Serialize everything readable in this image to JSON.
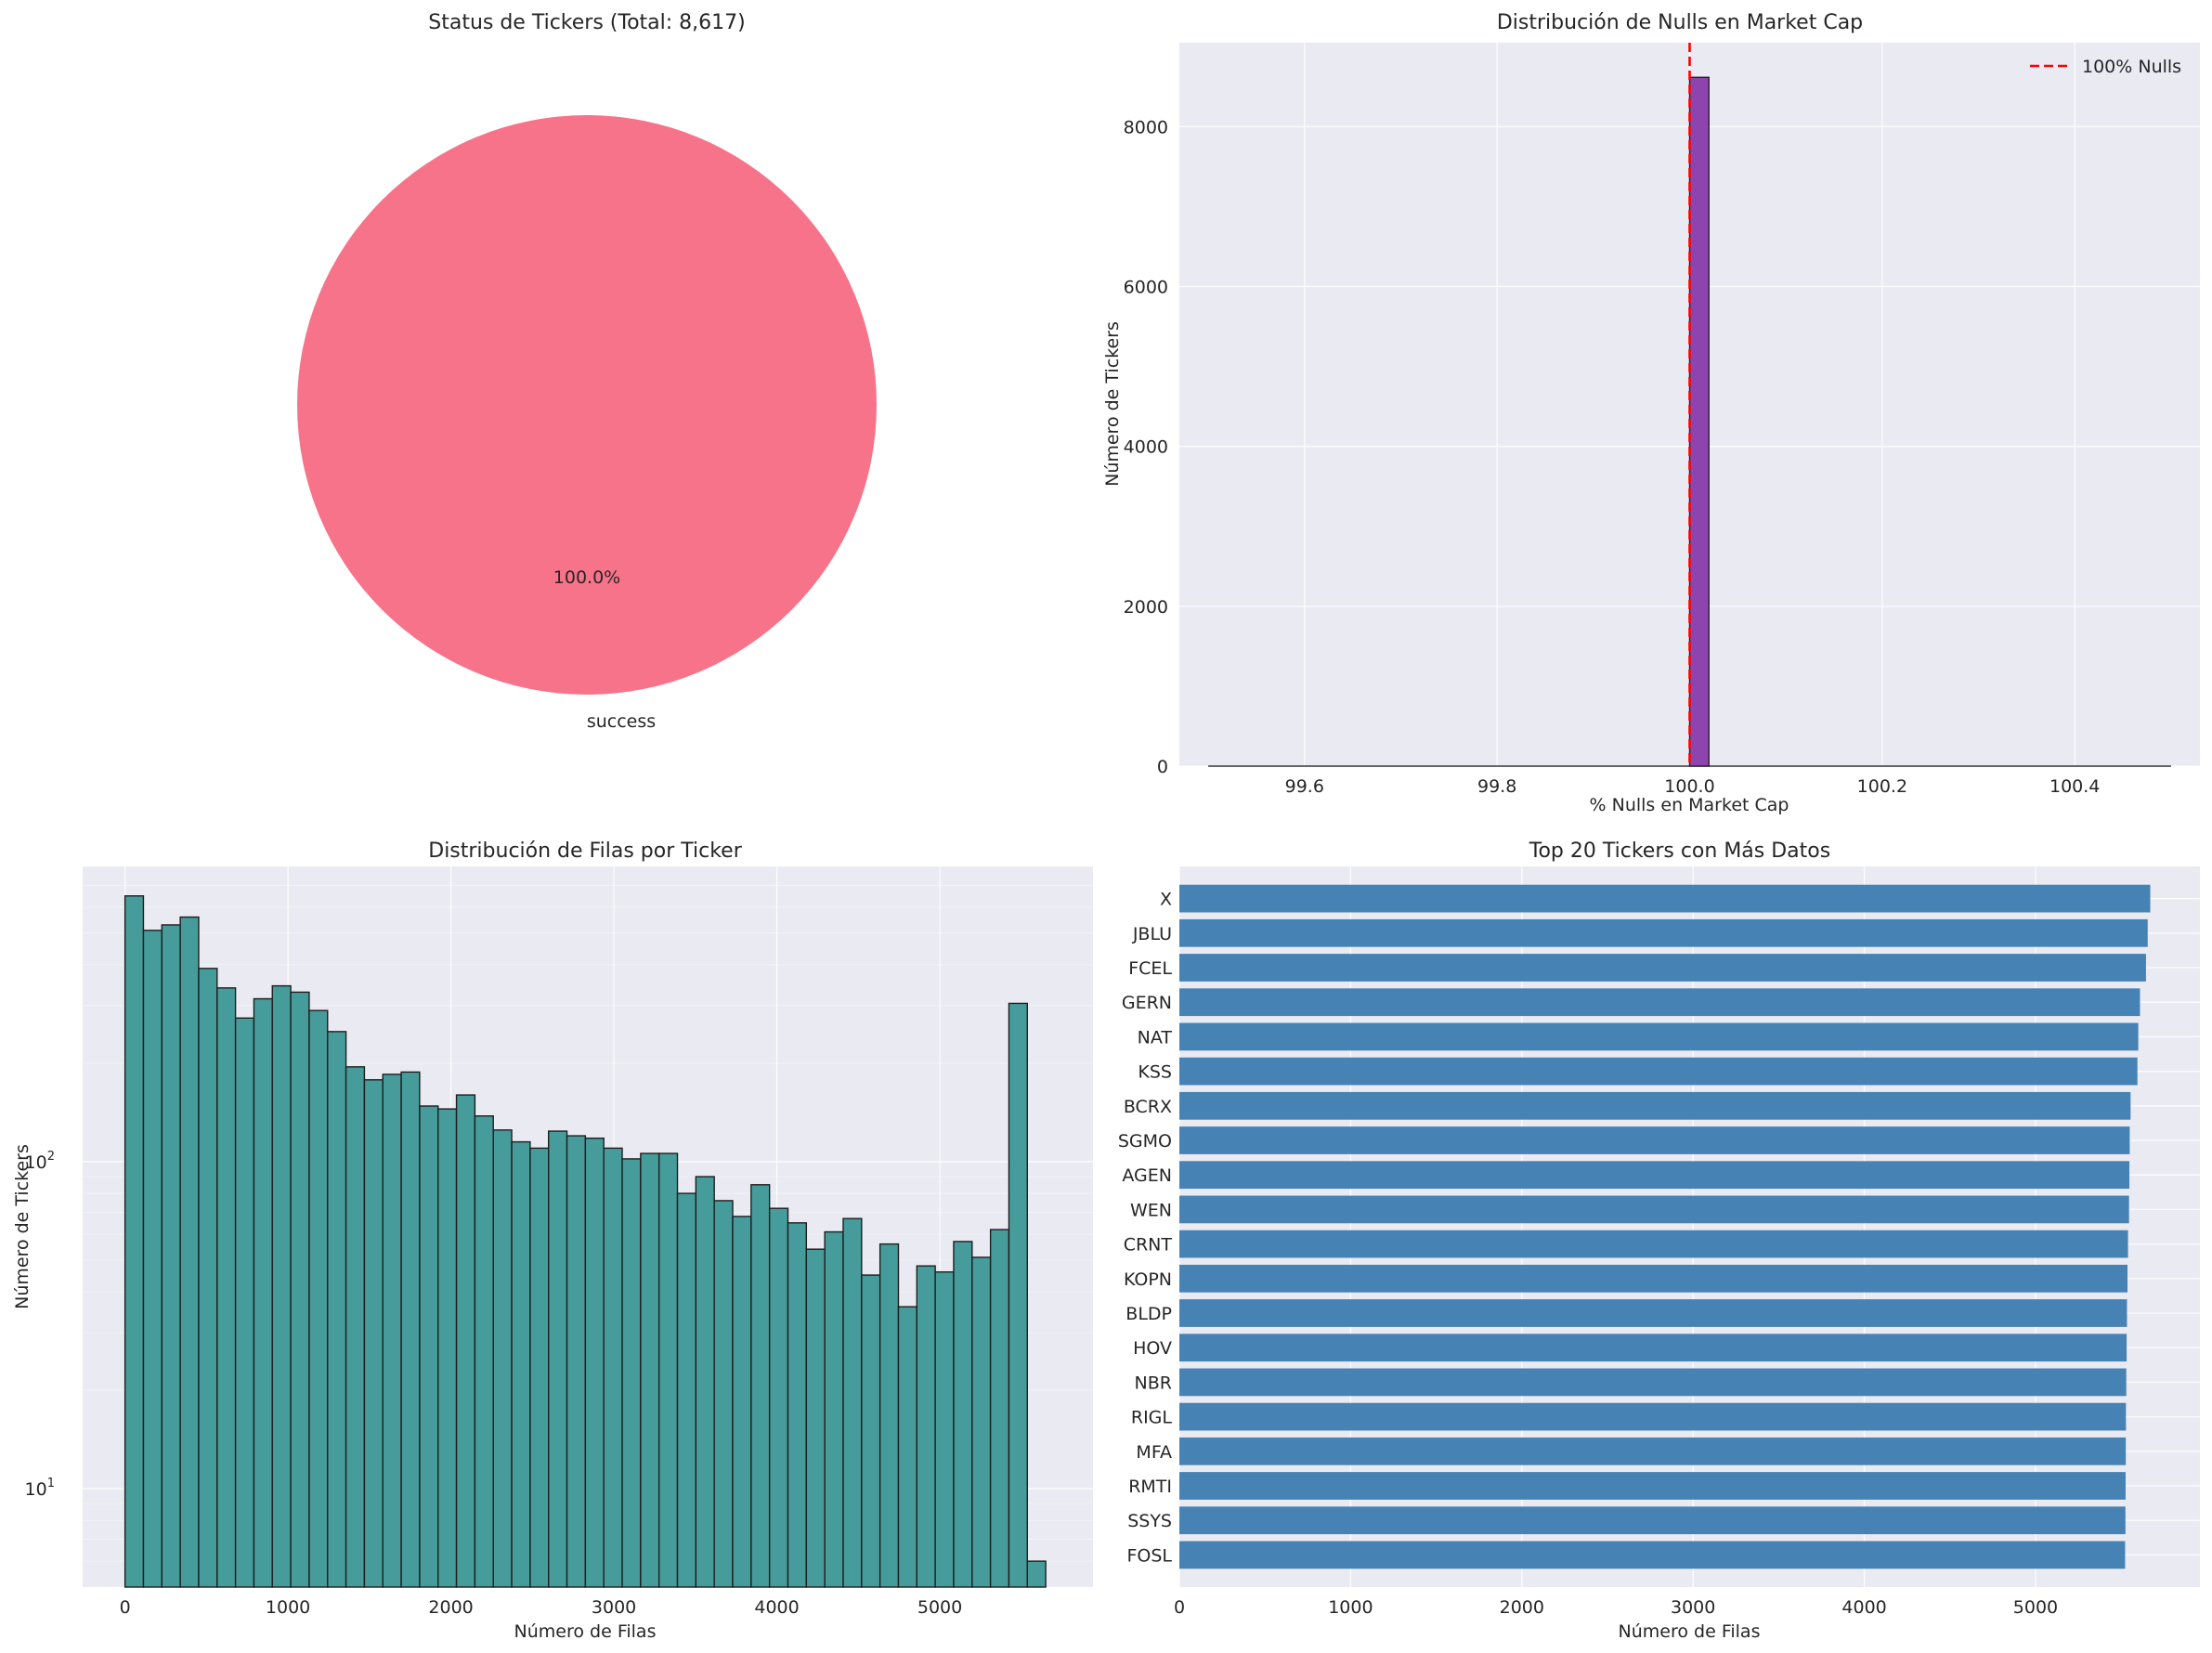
{
  "colors": {
    "panel_bg": "#eaeaf2",
    "pie": "#f7738a",
    "hist_purple": "#8e44ad",
    "hist_teal": "#469c9b",
    "bar_blue": "#4682b4",
    "ref_line": "#ff0000"
  },
  "chart_data": [
    {
      "type": "pie",
      "title": "Status de Tickers (Total: 8,617)",
      "labels": [
        "success"
      ],
      "values": [
        8617
      ],
      "pct_labels": [
        "100.0%"
      ]
    },
    {
      "type": "bar",
      "title": "Distribución de Nulls en Market Cap",
      "xlabel": "% Nulls en Market Cap",
      "ylabel": "Número de Tickers",
      "xlim": [
        99.47,
        100.53
      ],
      "ylim": [
        0,
        9050
      ],
      "xticks": [
        "99.6",
        "99.8",
        "100.0",
        "100.2",
        "100.4"
      ],
      "yticks": [
        "0",
        "2000",
        "4000",
        "6000",
        "8000"
      ],
      "bins": [
        {
          "x0": 100.0,
          "x1": 100.02,
          "count": 8617
        }
      ],
      "baseline_range": [
        99.5,
        100.5
      ],
      "reference_line": {
        "x": 100.0,
        "label": "100% Nulls"
      },
      "legend": "top-right"
    },
    {
      "type": "bar",
      "title": "Distribución de Filas por Ticker",
      "xlabel": "Número de Filas",
      "ylabel": "Número de Tickers",
      "yscale": "log",
      "xlim": [
        -260,
        5940
      ],
      "ylim": [
        5,
        800
      ],
      "xticks": [
        "0",
        "1000",
        "2000",
        "3000",
        "4000",
        "5000"
      ],
      "yticks": [
        "10^1",
        "10^2"
      ],
      "bin_width": 113,
      "bin_start": 0,
      "counts": [
        650,
        510,
        530,
        560,
        390,
        340,
        275,
        315,
        345,
        330,
        290,
        250,
        195,
        178,
        185,
        188,
        148,
        145,
        160,
        138,
        125,
        115,
        110,
        124,
        120,
        118,
        110,
        102,
        106,
        106,
        80,
        90,
        76,
        68,
        85,
        72,
        65,
        54,
        61,
        67,
        45,
        56,
        36,
        48,
        46,
        57,
        51,
        62,
        305,
        6
      ]
    },
    {
      "type": "bar",
      "orientation": "horizontal",
      "title": "Top 20 Tickers con Más Datos",
      "xlabel": "Número de Filas",
      "xlim": [
        0,
        5960
      ],
      "xticks": [
        "0",
        "1000",
        "2000",
        "3000",
        "4000",
        "5000"
      ],
      "categories": [
        "X",
        "JBLU",
        "FCEL",
        "GERN",
        "NAT",
        "KSS",
        "BCRX",
        "SGMO",
        "AGEN",
        "WEN",
        "CRNT",
        "KOPN",
        "BLDP",
        "HOV",
        "NBR",
        "RIGL",
        "MFA",
        "RMTI",
        "SSYS",
        "FOSL"
      ],
      "values": [
        5670,
        5655,
        5645,
        5610,
        5600,
        5595,
        5555,
        5550,
        5548,
        5546,
        5540,
        5537,
        5534,
        5532,
        5530,
        5528,
        5527,
        5526,
        5525,
        5523
      ]
    }
  ]
}
